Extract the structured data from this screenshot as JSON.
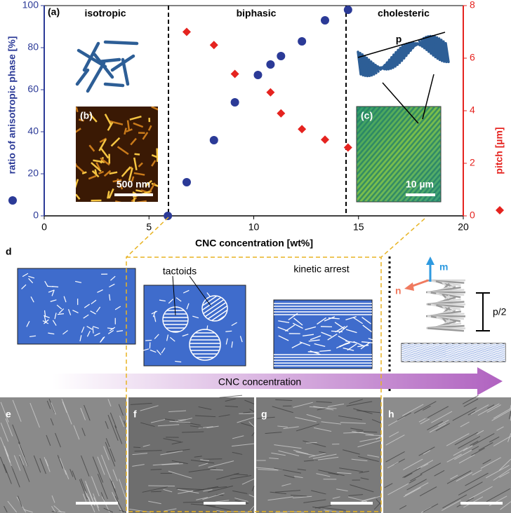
{
  "chart_data": {
    "type": "scatter",
    "panel_label": "(a)",
    "xlabel": "CNC concentration [wt%]",
    "ylabel": "ratio of anisotropic phase [%]",
    "y2label": "pitch [µm]",
    "xlim": [
      0,
      20
    ],
    "xticks": [
      0,
      5,
      10,
      15,
      20
    ],
    "ylim": [
      0,
      100
    ],
    "yticks": [
      0,
      20,
      40,
      60,
      80,
      100
    ],
    "y2lim": [
      0,
      8
    ],
    "y2ticks": [
      0,
      2,
      4,
      6,
      8
    ],
    "series": [
      {
        "color": "#2b3a97",
        "marker": "circle",
        "x": [
          5.9,
          6.8,
          8.1,
          9.1,
          10.2,
          10.8,
          11.3,
          12.3,
          13.4,
          14.5
        ],
        "values": [
          0,
          16,
          36,
          54,
          67,
          72,
          76,
          83,
          93,
          98
        ]
      },
      {
        "color": "#e5231f",
        "marker": "diamond",
        "axis": "y2",
        "x": [
          6.8,
          8.1,
          9.1,
          10.8,
          11.3,
          12.3,
          13.4,
          14.5
        ],
        "values": [
          7.0,
          6.5,
          5.4,
          4.7,
          3.9,
          3.3,
          2.9,
          2.6
        ]
      }
    ],
    "annotations": [
      "isotropic",
      "biphasic",
      "cholesteric"
    ],
    "insets": [
      {
        "label": "(b)",
        "scale_bar": "500 nm"
      },
      {
        "label": "(c)",
        "scale_bar": "10 µm"
      }
    ],
    "helix_label": "p"
  },
  "figure": {
    "panel_d": "d",
    "tactoids": "tactoids",
    "kinetic_arrest": "kinetic arrest",
    "m": "m",
    "n": "n",
    "half_pitch": "p/2",
    "arrow_label": "CNC concentration",
    "sem_panels": [
      "e",
      "f",
      "g",
      "h"
    ]
  }
}
